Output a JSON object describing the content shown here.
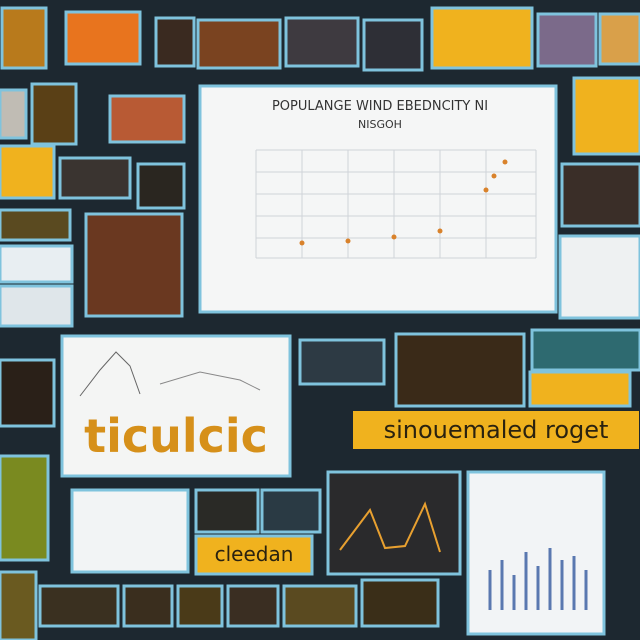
{
  "collage": {
    "chart_panel": {
      "title": "POPULANGE WIND EBEDNCITY NI",
      "subtitle": "NISGOH"
    },
    "banner_left": {
      "text": "ticulcic"
    },
    "banner_right": {
      "text": "sinouemaled roget"
    },
    "banner_bottom": {
      "text": "cleedan"
    }
  }
}
